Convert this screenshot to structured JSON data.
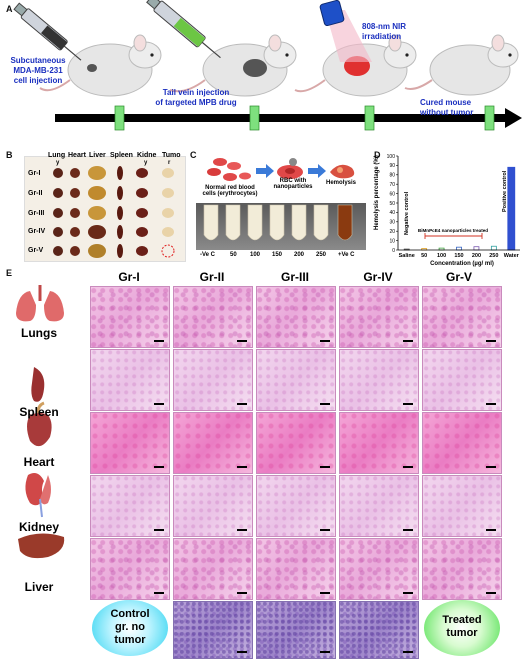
{
  "panel_labels": {
    "a": "A",
    "b": "B",
    "c": "C",
    "d": "D",
    "e": "E"
  },
  "panel_a": {
    "step1": [
      "Subcutaneous",
      "MDA-MB-231",
      "cell injection"
    ],
    "step2": [
      "Tail vein injection",
      "of targeted MPB drug"
    ],
    "step3": [
      "808-nm NIR",
      "irradiation"
    ],
    "step4": [
      "Cured mouse",
      "without tumor"
    ]
  },
  "panel_b": {
    "organs": [
      "Lung",
      "Heart",
      "Liver",
      "Spleen",
      "Kidne",
      "Tumo"
    ],
    "organs_wrap": [
      "y",
      "r"
    ],
    "groups": [
      "Gr-I",
      "Gr-II",
      "Gr-III",
      "Gr-IV",
      "Gr-V"
    ]
  },
  "panel_c": {
    "rbc_label": [
      "Normal red blood",
      "cells (erythrocytes)"
    ],
    "rbc_np_label": [
      "RBC with",
      "nanoparticles"
    ],
    "hemolysis_label": "Hemolysis",
    "tube_labels": [
      "-Ve C",
      "50",
      "100",
      "150",
      "200",
      "250",
      "+Ve C"
    ]
  },
  "chart_data": {
    "type": "bar",
    "title": "",
    "xlabel": "Concentration (µg/ ml)",
    "ylabel": "Hemolysis percentage (%)",
    "categories": [
      "Saline",
      "50",
      "100",
      "150",
      "200",
      "250",
      "Water"
    ],
    "values": [
      1,
      1.5,
      2,
      3,
      3.5,
      4,
      88
    ],
    "ylim": [
      0,
      100
    ],
    "yticks": [
      "0",
      "10",
      "20",
      "30",
      "40",
      "50",
      "60",
      "70",
      "80",
      "90",
      "100"
    ],
    "annotations": {
      "negative": "Negative control",
      "positive": "Positive control",
      "treated": "BiMnPcE4 nanoparticles treated"
    },
    "colors": {
      "saline": "#555555",
      "treated": [
        "#e0a020",
        "#40a040",
        "#3060c0",
        "#7a5ab0",
        "#30a0a0"
      ],
      "water": "#3050d0",
      "bracket": "#d03020"
    }
  },
  "panel_e": {
    "columns": [
      "Gr-I",
      "Gr-II",
      "Gr-III",
      "Gr-IV",
      "Gr-V"
    ],
    "rows": [
      "Lungs",
      "Spleen",
      "Heart",
      "Kidney",
      "Liver"
    ],
    "control_label": [
      "Control",
      "gr. no",
      "tumor"
    ],
    "treated_label": [
      "Treated",
      "tumor"
    ]
  }
}
